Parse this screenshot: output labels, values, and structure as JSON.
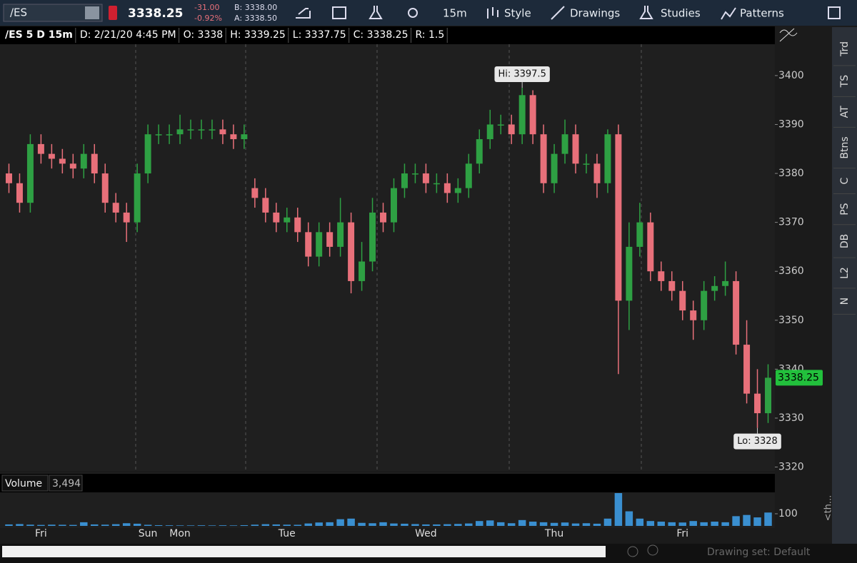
{
  "toolbar": {
    "symbol": "/ES",
    "last": "3338.25",
    "change": "-31.00",
    "change_pct": "-0.92%",
    "bid": "B: 3338.00",
    "ask": "A: 3338.50",
    "timeframe": "15m",
    "style": "Style",
    "drawings": "Drawings",
    "studies": "Studies",
    "patterns": "Patterns"
  },
  "info_bar": [
    "/ES 5 D 15m",
    "D: 2/21/20 4:45 PM",
    "O: 3338",
    "H: 3339.25",
    "L: 3337.75",
    "C: 3338.25",
    "R: 1.5"
  ],
  "sidebar": [
    "Trd",
    "TS",
    "AT",
    "Btns",
    "C",
    "PS",
    "DB",
    "L2",
    "N"
  ],
  "status": "Drawing set: Default",
  "chart_data": {
    "type": "candlestick",
    "categories": [
      null,
      null,
      null,
      "Fri",
      null,
      null,
      null,
      null,
      null,
      null,
      null,
      null,
      null,
      "Sun",
      null,
      null,
      "Mon",
      null,
      null,
      null,
      null,
      null,
      null,
      null,
      null,
      null,
      "Tue",
      null,
      null,
      null,
      null,
      null,
      null,
      null,
      null,
      null,
      null,
      null,
      null,
      "Wed",
      null,
      null,
      null,
      null,
      null,
      null,
      null,
      null,
      null,
      null,
      null,
      "Thu",
      null,
      null,
      null,
      null,
      null,
      null,
      null,
      null,
      null,
      null,
      null,
      "Fri",
      null,
      null,
      null,
      null,
      null,
      null,
      null,
      null
    ],
    "open": [
      3380,
      3378,
      3374,
      3386,
      3384,
      3383,
      3382,
      3381,
      3384,
      3380,
      3374,
      3372,
      3370,
      3380,
      3388,
      3388,
      3388,
      3389,
      3389,
      3389,
      3389,
      3388,
      3387,
      3377,
      3375,
      3372,
      3370,
      3371,
      3368,
      3363,
      3368,
      3365,
      3370,
      3358,
      3362,
      3372,
      3370,
      3377,
      3380,
      3380,
      3378,
      3378,
      3376,
      3377,
      3382,
      3387,
      3390,
      3390,
      3388,
      3396,
      3388,
      3378,
      3384,
      3388,
      3382,
      3382,
      3378,
      3388,
      3354,
      3365,
      3370,
      3360,
      3358,
      3356,
      3352,
      3350,
      3356,
      3357,
      3358,
      3345,
      3335,
      3331
    ],
    "high": [
      3382,
      3380,
      3388,
      3388,
      3386,
      3385,
      3384,
      3386,
      3386,
      3382,
      3376,
      3374,
      3382,
      3390,
      3390,
      3390,
      3392,
      3391,
      3391,
      3391,
      3391,
      3390,
      3390,
      3379,
      3377,
      3374,
      3373,
      3373,
      3370,
      3370,
      3370,
      3375,
      3372,
      3366,
      3375,
      3374,
      3379,
      3382,
      3382,
      3382,
      3380,
      3380,
      3379,
      3384,
      3389,
      3393,
      3392,
      3392,
      3397.5,
      3397,
      3390,
      3386,
      3391,
      3390,
      3384,
      3384,
      3389,
      3390,
      3370,
      3374,
      3372,
      3362,
      3360,
      3358,
      3354,
      3358,
      3359,
      3362,
      3360,
      3350,
      3340,
      3341
    ],
    "low": [
      3376,
      3372,
      3372,
      3382,
      3381,
      3380,
      3379,
      3379,
      3378,
      3372,
      3370,
      3366,
      3368,
      3378,
      3386,
      3386,
      3386,
      3387,
      3387,
      3387,
      3386,
      3385,
      3385,
      3373,
      3370,
      3368,
      3368,
      3366,
      3361,
      3361,
      3363,
      3363,
      3355.5,
      3356,
      3360,
      3368,
      3368,
      3375,
      3378,
      3376,
      3376,
      3374,
      3374,
      3375,
      3380,
      3385,
      3388,
      3386,
      3386,
      3386,
      3376,
      3376,
      3382,
      3380,
      3380,
      3375,
      3376,
      3339,
      3348,
      3363,
      3358,
      3356,
      3354,
      3350,
      3346,
      3348,
      3354,
      3355,
      3343,
      3333,
      3328,
      3329
    ],
    "close": [
      3378,
      3374,
      3386,
      3384,
      3383,
      3382,
      3381,
      3384,
      3380,
      3374,
      3372,
      3370,
      3380,
      3388,
      3388,
      3388,
      3389,
      3389,
      3389,
      3389,
      3388,
      3387,
      3388,
      3375,
      3372,
      3370,
      3371,
      3368,
      3363,
      3368,
      3365,
      3370,
      3358,
      3362,
      3372,
      3370,
      3377,
      3380,
      3380,
      3378,
      3378,
      3376,
      3377,
      3382,
      3387,
      3390,
      3390,
      3388,
      3396,
      3388,
      3378,
      3384,
      3388,
      3382,
      3382,
      3378,
      3388,
      3354,
      3365,
      3370,
      3360,
      3358,
      3356,
      3352,
      3350,
      3356,
      3357,
      3358,
      3345,
      3335,
      3331,
      3338.25
    ],
    "up_color": "#2ea043",
    "down_color": "#e8707a",
    "ylim": [
      3319.2,
      3409.9
    ],
    "yticks": [
      3320,
      3330,
      3340,
      3350,
      3360,
      3370,
      3380,
      3390,
      3400
    ],
    "high_label": "Hi: 3397.5",
    "low_label": "Lo: 3328",
    "last_price": 3338.25,
    "volume_title": "Volume",
    "volume_value": "3,494",
    "volume": [
      12,
      15,
      10,
      8,
      10,
      9,
      8,
      30,
      12,
      10,
      14,
      22,
      18,
      9,
      6,
      5,
      4,
      4,
      5,
      4,
      5,
      4,
      6,
      10,
      14,
      12,
      10,
      9,
      20,
      28,
      30,
      55,
      60,
      25,
      22,
      30,
      20,
      18,
      15,
      12,
      12,
      14,
      16,
      20,
      40,
      45,
      30,
      22,
      48,
      35,
      30,
      25,
      28,
      20,
      22,
      18,
      60,
      270,
      120,
      60,
      40,
      35,
      30,
      28,
      40,
      30,
      35,
      30,
      80,
      90,
      70,
      110
    ],
    "volume_color": "#3a8fd0",
    "volume_ylim": [
      0,
      276
    ],
    "volume_yticks": [
      100
    ]
  }
}
